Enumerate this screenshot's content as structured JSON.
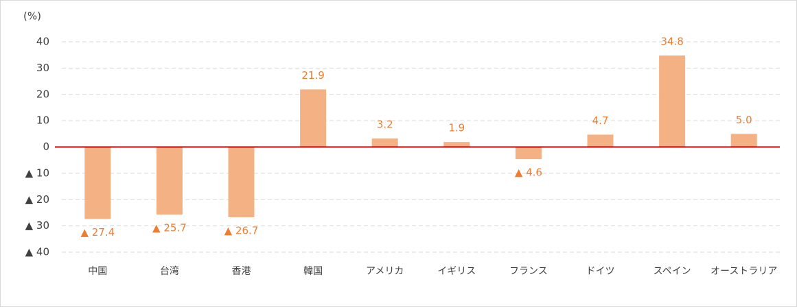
{
  "chart_data": {
    "type": "bar",
    "unit_label": "(%)",
    "categories": [
      "中国",
      "台湾",
      "香港",
      "韓国",
      "アメリカ",
      "イギリス",
      "フランス",
      "ドイツ",
      "スペイン",
      "オーストラリア"
    ],
    "values": [
      -27.4,
      -25.7,
      -26.7,
      21.9,
      3.2,
      1.9,
      -4.6,
      4.7,
      34.8,
      5.0
    ],
    "value_labels": [
      "▲ 27.4",
      "▲ 25.7",
      "▲ 26.7",
      "21.9",
      "3.2",
      "1.9",
      "▲ 4.6",
      "4.7",
      "34.8",
      "5.0"
    ],
    "color": "#f4b183",
    "label_color": "#ed7d31",
    "zero_line_color": "#c00000",
    "ylim": [
      -40,
      40
    ],
    "yticks": [
      40,
      30,
      20,
      10,
      0,
      {
        "value": -10,
        "label": "▲ 10"
      },
      {
        "value": -20,
        "label": "▲ 20"
      },
      {
        "value": -30,
        "label": "▲ 30"
      },
      {
        "value": -40,
        "label": "▲ 40"
      }
    ],
    "grid": true
  }
}
